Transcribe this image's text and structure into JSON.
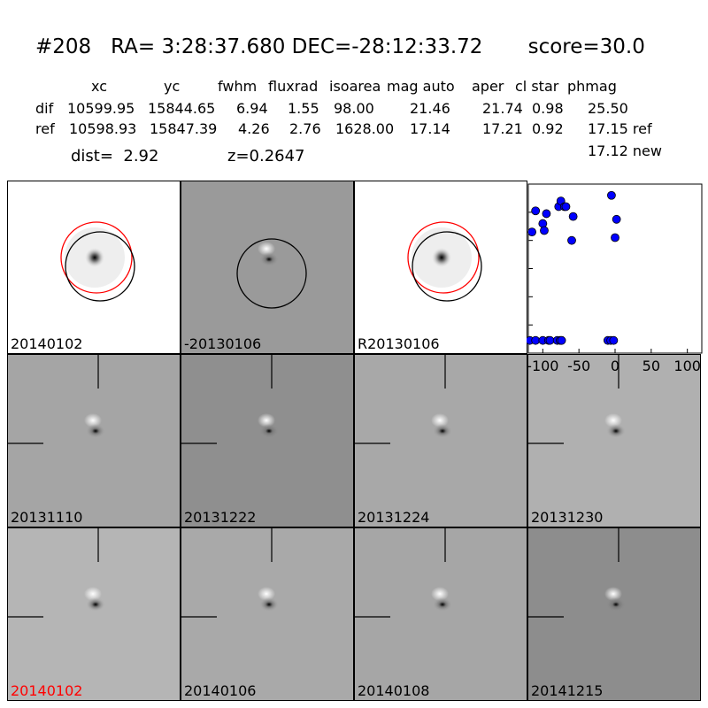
{
  "header": {
    "title": "#208   RA= 3:28:37.680 DEC=-28:12:33.72       score=30.0",
    "columns": [
      "xc",
      "yc",
      "fwhm",
      "fluxrad",
      "isoarea",
      "mag auto",
      "aper",
      "cl star",
      "phmag"
    ],
    "rows": [
      {
        "label": "dif",
        "values": [
          "10599.95",
          "15844.65",
          "6.94",
          "1.55",
          "98.00",
          "21.46",
          "21.74",
          "0.98",
          "25.50"
        ]
      },
      {
        "label": "ref",
        "values": [
          "10598.93",
          "15847.39",
          "4.26",
          "2.76",
          "1628.00",
          "17.14",
          "17.21",
          "0.92",
          "17.15 ref"
        ]
      }
    ],
    "phmag_new": "17.12 new",
    "dist": "dist=  2.92",
    "z": "z=0.2647"
  },
  "panels": [
    {
      "label": "20140102",
      "type": "image",
      "circles": "red-black",
      "color": "#000000"
    },
    {
      "label": "-20130106",
      "type": "diff",
      "circles": "black",
      "color": "#000000"
    },
    {
      "label": "R20130106",
      "type": "image",
      "circles": "red-black",
      "color": "#000000"
    },
    {
      "label": "20131110",
      "type": "diff",
      "color": "#000000"
    },
    {
      "label": "20131222",
      "type": "diff",
      "color": "#000000"
    },
    {
      "label": "20131224",
      "type": "diff",
      "color": "#000000"
    },
    {
      "label": "20131230",
      "type": "diff",
      "color": "#000000"
    },
    {
      "label": "20140102",
      "type": "diff",
      "color": "#ff0000"
    },
    {
      "label": "20140106",
      "type": "diff",
      "color": "#000000"
    },
    {
      "label": "20140108",
      "type": "diff",
      "color": "#000000"
    },
    {
      "label": "20141215",
      "type": "diff",
      "color": "#000000"
    }
  ],
  "chart_data": {
    "type": "scatter",
    "xlim": [
      -120,
      120
    ],
    "ylim": [
      26,
      20
    ],
    "xticks": [
      "-100",
      "-50",
      "0",
      "50",
      "100"
    ],
    "yticks": [
      "20",
      "21",
      "22",
      "23",
      "24",
      "25",
      "26"
    ],
    "point_color": "#0000ff",
    "x": [
      -115,
      -110,
      -100,
      -98,
      -95,
      -78,
      -75,
      -70,
      -68,
      -60,
      -58,
      -5,
      0,
      2,
      -118,
      -110,
      -100,
      -92,
      -90,
      -80,
      -76,
      -74,
      -10,
      -6,
      -2
    ],
    "y": [
      21.7,
      20.95,
      21.4,
      21.65,
      21.05,
      20.8,
      20.6,
      20.8,
      20.8,
      22.0,
      21.15,
      20.4,
      21.9,
      21.25,
      25.55,
      25.55,
      25.55,
      25.55,
      25.55,
      25.55,
      25.55,
      25.55,
      25.55,
      25.55,
      25.55
    ]
  }
}
